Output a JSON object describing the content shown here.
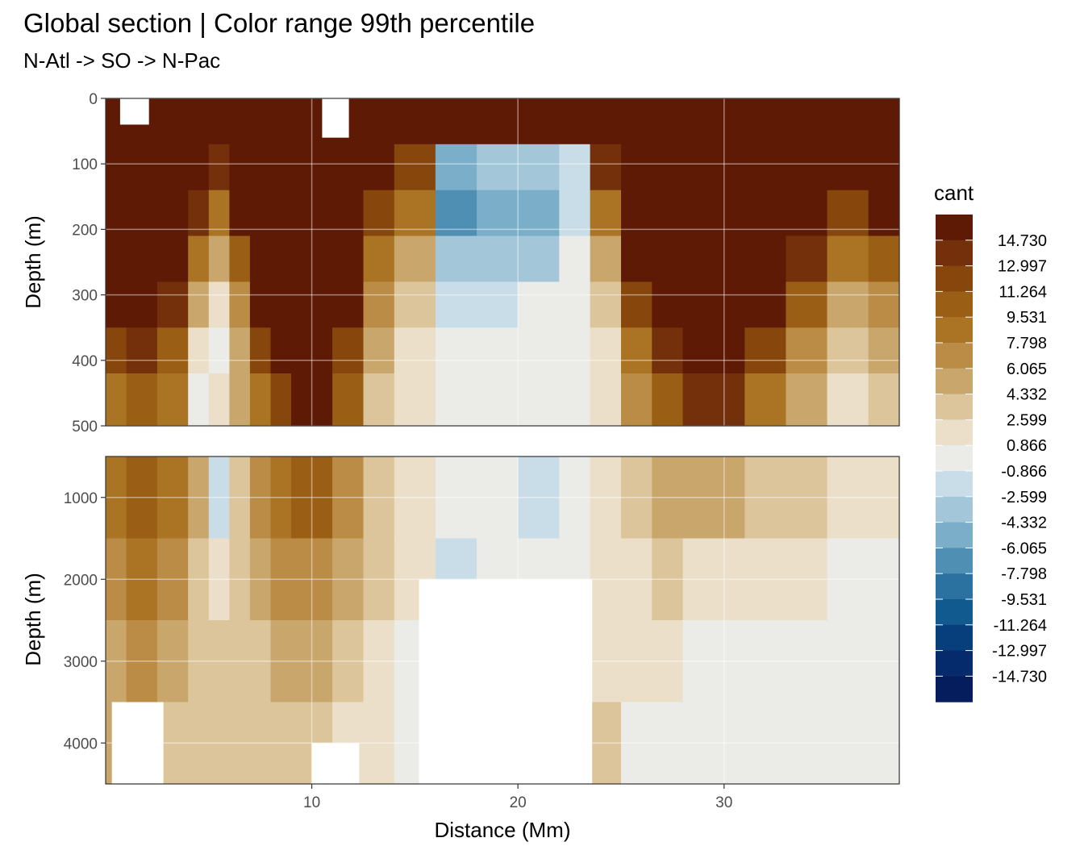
{
  "chart_data": {
    "type": "heatmap",
    "title": "Global section | Color range 99th percentile",
    "subtitle": "N-Atl -> SO -> N-Pac",
    "xlabel": "Distance (Mm)",
    "ylabel": "Depth (m)",
    "xlim": [
      0,
      38.5
    ],
    "x_ticks": [
      10,
      20,
      30
    ],
    "panels": [
      {
        "ylim": [
          0,
          500
        ],
        "y_ticks": [
          0,
          100,
          200,
          300,
          400,
          500
        ]
      },
      {
        "ylim": [
          500,
          4500
        ],
        "y_ticks": [
          1000,
          2000,
          3000,
          4000
        ]
      }
    ],
    "legend": {
      "title": "cant",
      "placement": "right",
      "breaks": [
        "14.730",
        "12.997",
        "11.264",
        "9.531",
        "7.798",
        "6.065",
        "4.332",
        "2.599",
        "0.866",
        "-0.866",
        "-2.599",
        "-4.332",
        "-6.065",
        "-7.798",
        "-9.531",
        "-11.264",
        "-12.997",
        "-14.730"
      ],
      "colors": [
        "#5e1a05",
        "#73300a",
        "#87470c",
        "#9a5e14",
        "#ab7424",
        "#ba8c45",
        "#c9a76c",
        "#dcc59a",
        "#ebdfc9",
        "#ebebe8",
        "#c9dde8",
        "#a3c6d9",
        "#7aaec9",
        "#4f8fb4",
        "#2b72a1",
        "#115a8f",
        "#063f7c",
        "#062b6c",
        "#051d5c"
      ]
    },
    "grid": true,
    "field": {
      "columns": [
        {
          "x": [
            0,
            1
          ],
          "top": [
            17,
            15,
            13,
            11,
            9,
            7,
            5
          ],
          "deep": [
            5,
            4,
            3,
            3
          ]
        },
        {
          "x": [
            1,
            2.5
          ],
          "top": [
            17,
            17,
            15,
            13,
            11,
            8,
            6
          ],
          "deep": [
            6,
            5,
            4,
            3
          ]
        },
        {
          "x": [
            2.5,
            4
          ],
          "top": [
            16,
            14,
            12,
            10,
            8,
            6,
            5
          ],
          "deep": [
            5,
            4,
            3,
            2
          ]
        },
        {
          "x": [
            4,
            5
          ],
          "top": [
            14,
            11,
            8,
            5,
            3,
            1,
            0
          ],
          "deep": [
            3,
            2,
            2,
            2
          ]
        },
        {
          "x": [
            5,
            6
          ],
          "top": [
            12,
            8,
            5,
            3,
            1,
            0,
            1
          ],
          "deep": [
            -1,
            1,
            2,
            2
          ]
        },
        {
          "x": [
            6,
            7
          ],
          "top": [
            15,
            12,
            9,
            6,
            4,
            3,
            3
          ],
          "deep": [
            2,
            2,
            2,
            2
          ]
        },
        {
          "x": [
            7,
            8
          ],
          "top": [
            16,
            15,
            13,
            11,
            9,
            7,
            5
          ],
          "deep": [
            4,
            3,
            2,
            2
          ]
        },
        {
          "x": [
            8,
            9
          ],
          "top": [
            17,
            16,
            15,
            13,
            11,
            9,
            7
          ],
          "deep": [
            5,
            4,
            3,
            2
          ]
        },
        {
          "x": [
            9,
            11
          ],
          "top": [
            17,
            17,
            17,
            16,
            15,
            13,
            11
          ],
          "deep": [
            6,
            4,
            3,
            2
          ]
        },
        {
          "x": [
            11,
            12.5
          ],
          "top": [
            16,
            15,
            13,
            11,
            9,
            7,
            6
          ],
          "deep": [
            4,
            3,
            2,
            1
          ]
        },
        {
          "x": [
            12.5,
            14
          ],
          "top": [
            12,
            9,
            7,
            5,
            4,
            3,
            2
          ],
          "deep": [
            2,
            2,
            1,
            1
          ]
        },
        {
          "x": [
            14,
            16
          ],
          "top": [
            10,
            7,
            5,
            3,
            2,
            1,
            1
          ],
          "deep": [
            1,
            1,
            0,
            0
          ]
        },
        {
          "x": [
            16,
            18
          ],
          "top": [
            9,
            -3,
            -4,
            -2,
            -1,
            0,
            0
          ],
          "deep": [
            0,
            -1,
            0,
            -1
          ]
        },
        {
          "x": [
            18,
            20
          ],
          "top": [
            11,
            -2,
            -3,
            -2,
            -1,
            0,
            0
          ],
          "deep": [
            0,
            0,
            0,
            -1
          ]
        },
        {
          "x": [
            20,
            22
          ],
          "top": [
            12,
            -2,
            -3,
            -2,
            0,
            0,
            0
          ],
          "deep": [
            -1,
            0,
            0,
            0
          ]
        },
        {
          "x": [
            22,
            23.5
          ],
          "top": [
            11,
            -1,
            -1,
            0,
            0,
            0,
            0
          ],
          "deep": [
            0,
            0,
            1,
            1
          ]
        },
        {
          "x": [
            23.5,
            25
          ],
          "top": [
            12,
            8,
            5,
            3,
            2,
            1,
            1
          ],
          "deep": [
            1,
            1,
            1,
            2
          ]
        },
        {
          "x": [
            25,
            26.5
          ],
          "top": [
            15,
            13,
            11,
            9,
            7,
            5,
            4
          ],
          "deep": [
            2,
            1,
            1,
            0
          ]
        },
        {
          "x": [
            26.5,
            28
          ],
          "top": [
            16,
            14,
            13,
            12,
            10,
            8,
            6
          ],
          "deep": [
            3,
            2,
            1,
            0
          ]
        },
        {
          "x": [
            28,
            31
          ],
          "top": [
            17,
            16,
            15,
            13,
            12,
            10,
            8
          ],
          "deep": [
            3,
            1,
            0,
            0
          ]
        },
        {
          "x": [
            31,
            33
          ],
          "top": [
            17,
            15,
            13,
            11,
            9,
            7,
            5
          ],
          "deep": [
            2,
            1,
            0,
            0
          ]
        },
        {
          "x": [
            33,
            35
          ],
          "top": [
            16,
            13,
            11,
            8,
            6,
            4,
            3
          ],
          "deep": [
            2,
            1,
            0,
            0
          ]
        },
        {
          "x": [
            35,
            37
          ],
          "top": [
            13,
            10,
            7,
            5,
            3,
            2,
            1
          ],
          "deep": [
            1,
            0,
            0,
            0
          ]
        },
        {
          "x": [
            37,
            38.5
          ],
          "top": [
            14,
            11,
            9,
            6,
            4,
            3,
            2
          ],
          "deep": [
            1,
            0,
            0,
            0
          ]
        }
      ],
      "no_data": [
        {
          "x": [
            15.2,
            23.6
          ],
          "depth": [
            2000,
            4500
          ]
        },
        {
          "x": [
            10,
            12.3
          ],
          "depth": [
            4000,
            4500
          ]
        },
        {
          "x": [
            0.3,
            2.8
          ],
          "depth": [
            3500,
            4500
          ]
        },
        {
          "x": [
            10.5,
            11.8
          ],
          "depth": [
            0,
            60
          ]
        },
        {
          "x": [
            0.7,
            2.1
          ],
          "depth": [
            0,
            40
          ]
        }
      ]
    }
  }
}
